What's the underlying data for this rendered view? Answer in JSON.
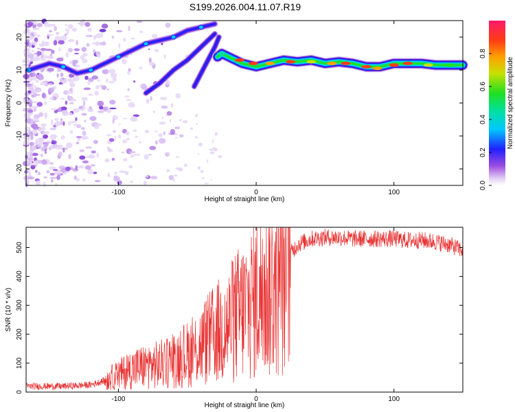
{
  "title": "S199.2026.004.11.07.R19",
  "chart_data": [
    {
      "type": "heatmap",
      "xlabel": "Height of straight line (km)",
      "ylabel": "Frequency (Hz)",
      "xlim": [
        -167,
        150
      ],
      "ylim": [
        -25,
        25
      ],
      "xticks": [
        -100,
        0,
        100
      ],
      "yticks": [
        -20,
        -10,
        0,
        10,
        20
      ],
      "colorbar": {
        "label": "Normalized spectral amplitude",
        "range": [
          0,
          1
        ],
        "ticks": [
          "0.0",
          "0.2",
          "0.4",
          "0.6",
          "0.8"
        ]
      },
      "ridge": {
        "name": "",
        "points": [
          [
            -165,
            10
          ],
          [
            -150,
            12
          ],
          [
            -140,
            11
          ],
          [
            -130,
            9
          ],
          [
            -120,
            10
          ],
          [
            -110,
            12
          ],
          [
            -100,
            14
          ],
          [
            -90,
            16
          ],
          [
            -80,
            18
          ],
          [
            -70,
            19
          ],
          [
            -60,
            20
          ],
          [
            -50,
            22
          ],
          [
            -40,
            23
          ],
          [
            -30,
            24
          ],
          [
            -28,
            14
          ],
          [
            -25,
            15
          ],
          [
            -20,
            14
          ],
          [
            -10,
            12
          ],
          [
            0,
            11
          ],
          [
            10,
            12
          ],
          [
            20,
            13
          ],
          [
            30,
            12.5
          ],
          [
            40,
            13
          ],
          [
            50,
            12
          ],
          [
            60,
            12.5
          ],
          [
            70,
            12
          ],
          [
            80,
            11
          ],
          [
            90,
            11
          ],
          [
            100,
            12
          ],
          [
            110,
            12
          ],
          [
            120,
            12
          ],
          [
            130,
            11.5
          ],
          [
            140,
            11.5
          ],
          [
            150,
            11.5
          ]
        ]
      },
      "secondary_ridges": [
        [
          [
            -80,
            3
          ],
          [
            -70,
            6
          ],
          [
            -60,
            10
          ],
          [
            -50,
            13
          ],
          [
            -40,
            17
          ],
          [
            -30,
            21
          ]
        ],
        [
          [
            -45,
            5
          ],
          [
            -40,
            9
          ],
          [
            -35,
            13
          ],
          [
            -30,
            17
          ],
          [
            -27,
            20
          ]
        ]
      ]
    },
    {
      "type": "line",
      "xlabel": "Height of straight line (km)",
      "ylabel": "SNR (10 * v/v)",
      "xlim": [
        -167,
        150
      ],
      "ylim": [
        0,
        570
      ],
      "xticks": [
        -100,
        0,
        100
      ],
      "yticks": [
        0,
        100,
        200,
        300,
        400,
        500
      ],
      "color": "#e83030",
      "trend": [
        [
          -167,
          20
        ],
        [
          -140,
          20
        ],
        [
          -120,
          25
        ],
        [
          -110,
          40
        ],
        [
          -100,
          60
        ],
        [
          -90,
          80
        ],
        [
          -80,
          90
        ],
        [
          -70,
          95
        ],
        [
          -60,
          110
        ],
        [
          -50,
          130
        ],
        [
          -40,
          160
        ],
        [
          -30,
          200
        ],
        [
          -20,
          230
        ],
        [
          -15,
          260
        ],
        [
          -10,
          280
        ],
        [
          -5,
          300
        ],
        [
          0,
          330
        ],
        [
          10,
          360
        ],
        [
          20,
          420
        ],
        [
          25,
          480
        ],
        [
          30,
          510
        ],
        [
          40,
          530
        ],
        [
          50,
          535
        ],
        [
          60,
          535
        ],
        [
          70,
          530
        ],
        [
          80,
          530
        ],
        [
          90,
          530
        ],
        [
          100,
          530
        ],
        [
          110,
          525
        ],
        [
          120,
          525
        ],
        [
          130,
          520
        ],
        [
          140,
          510
        ],
        [
          150,
          490
        ]
      ]
    }
  ]
}
